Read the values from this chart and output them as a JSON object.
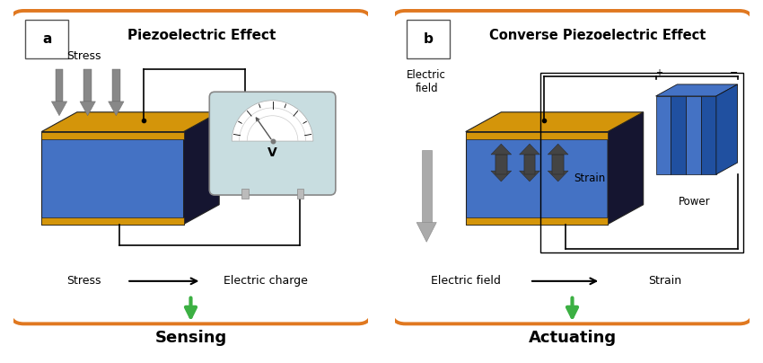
{
  "panel_a_title": "Piezoelectric Effect",
  "panel_b_title": "Converse Piezoelectric Effect",
  "panel_a_label": "a",
  "panel_b_label": "b",
  "panel_a_bottom_left": "Stress",
  "panel_a_bottom_right": "Electric charge",
  "panel_b_bottom_left": "Electric field",
  "panel_b_bottom_right": "Strain",
  "panel_a_footer": "Sensing",
  "panel_b_footer": "Actuating",
  "stress_label": "Stress",
  "electric_field_label": "Electric\nfield",
  "strain_label": "Strain",
  "power_label": "Power",
  "border_color": "#E07820",
  "block_gold_color": "#D4950A",
  "block_blue_color": "#4472C4",
  "block_dark_color": "#151530",
  "arrow_gray": "#909090",
  "arrow_dark": "#444444",
  "green_arrow": "#3CB043",
  "meter_bg": "#C8DDE0",
  "battery_blue": "#4472C4",
  "battery_dark": "#2050A0"
}
